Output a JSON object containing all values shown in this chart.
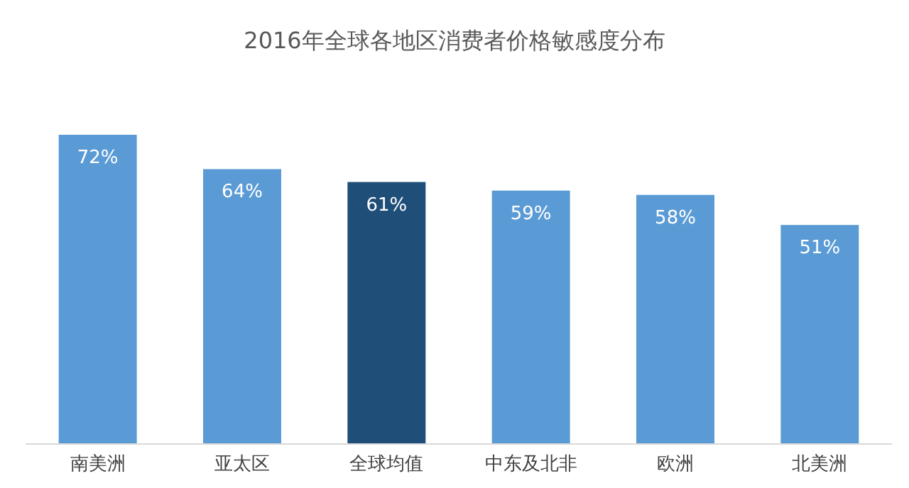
{
  "chart_data": {
    "type": "bar",
    "title": "2016年全球各地区消费者价格敏感度分布",
    "categories": [
      "南美洲",
      "亚太区",
      "全球均值",
      "中东及北非",
      "欧洲",
      "北美洲"
    ],
    "values": [
      72,
      64,
      61,
      59,
      58,
      51
    ],
    "value_labels": [
      "72%",
      "64%",
      "61%",
      "59%",
      "58%",
      "51%"
    ],
    "colors": [
      "#5b9bd5",
      "#5b9bd5",
      "#1f4e79",
      "#5b9bd5",
      "#5b9bd5",
      "#5b9bd5"
    ]
  }
}
